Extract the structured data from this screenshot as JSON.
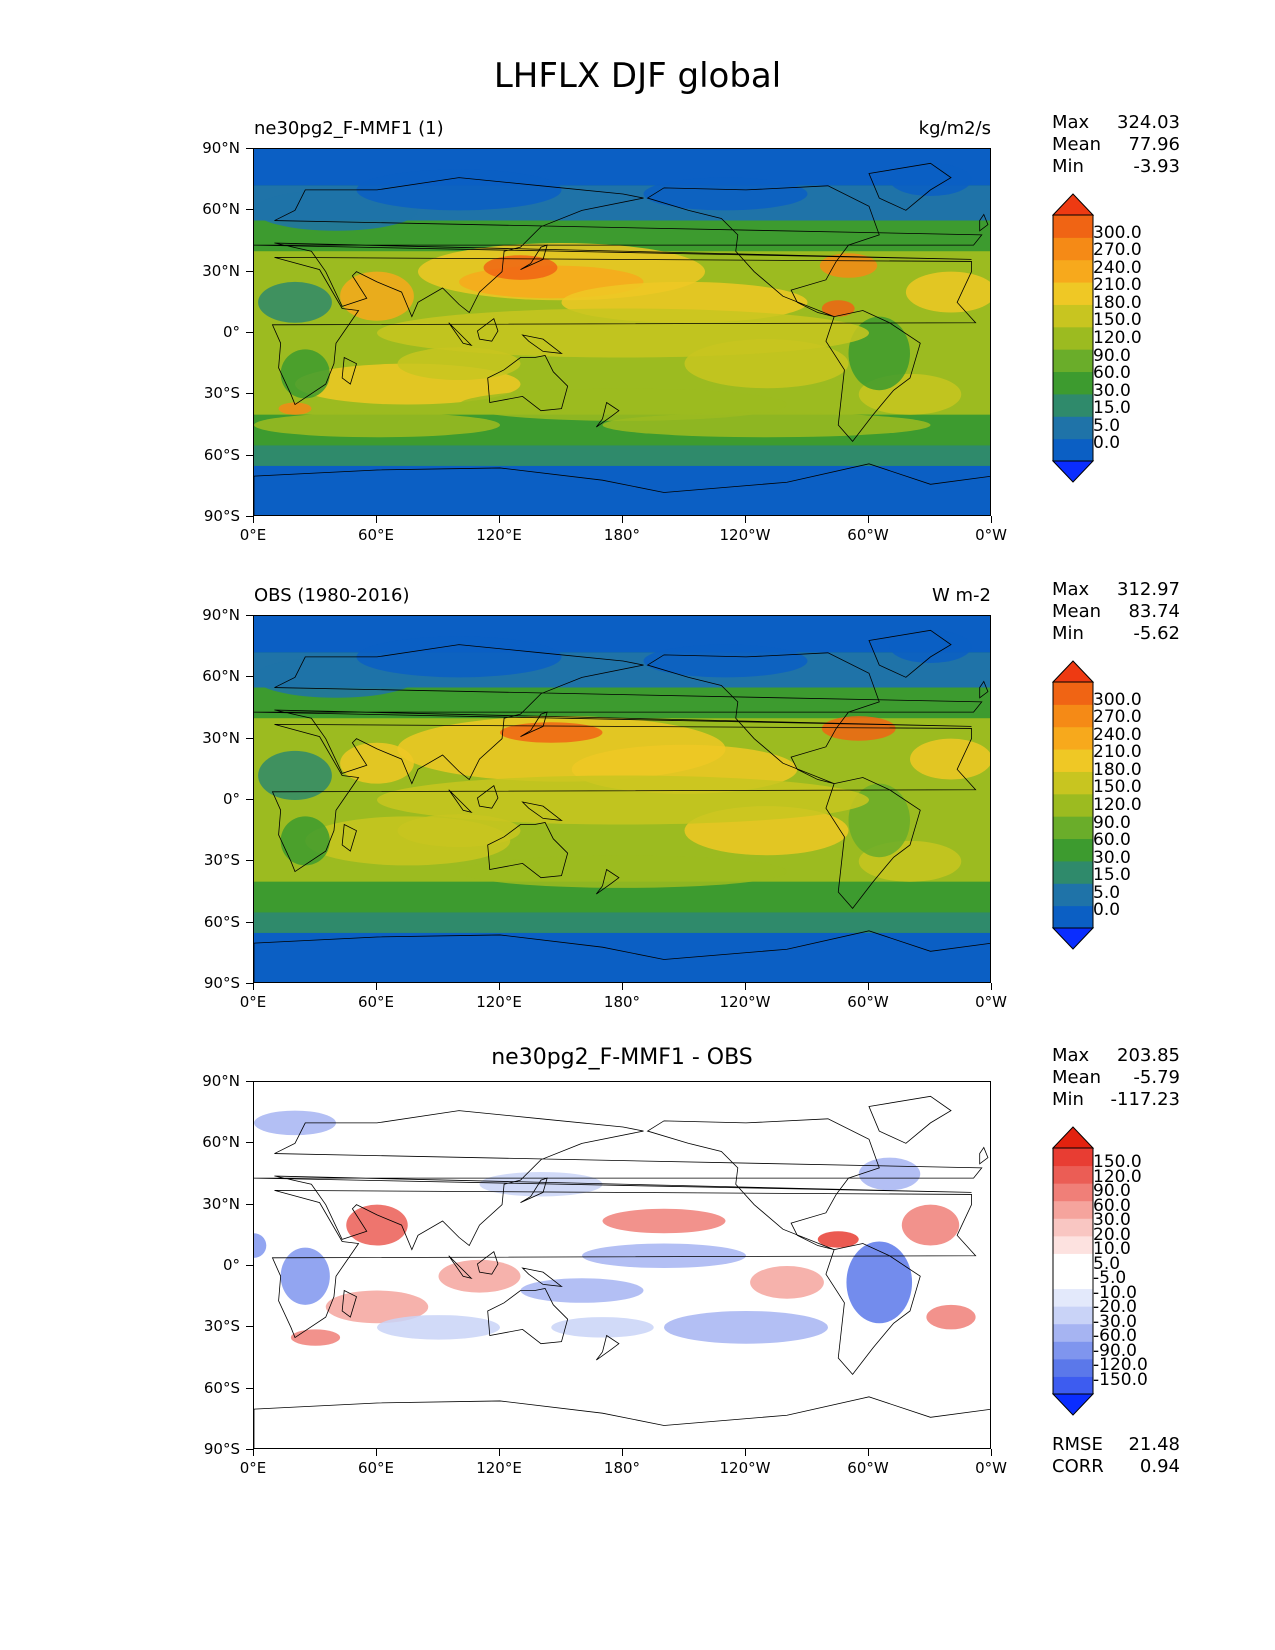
{
  "title": "LHFLX DJF global",
  "y_ticks": [
    "90°N",
    "60°N",
    "30°N",
    "0°",
    "30°S",
    "60°S",
    "90°S"
  ],
  "x_ticks": [
    "0°E",
    "60°E",
    "120°E",
    "180°",
    "120°W",
    "60°W",
    "0°W"
  ],
  "panels": [
    {
      "title_left": "ne30pg2_F-MMF1 (1)",
      "title_right": "kg/m2/s",
      "title_center": "",
      "stats": {
        "max_label": "Max",
        "max": "324.03",
        "mean_label": "Mean",
        "mean": "77.96",
        "min_label": "Min",
        "min": "-3.93"
      },
      "colorbar": [
        "300.0",
        "270.0",
        "240.0",
        "210.0",
        "180.0",
        "150.0",
        "120.0",
        "90.0",
        "60.0",
        "30.0",
        "15.0",
        "5.0",
        "0.0"
      ]
    },
    {
      "title_left": "OBS (1980-2016)",
      "title_right": "W m-2",
      "title_center": "",
      "stats": {
        "max_label": "Max",
        "max": "312.97",
        "mean_label": "Mean",
        "mean": "83.74",
        "min_label": "Min",
        "min": "-5.62"
      },
      "colorbar": [
        "300.0",
        "270.0",
        "240.0",
        "210.0",
        "180.0",
        "150.0",
        "120.0",
        "90.0",
        "60.0",
        "30.0",
        "15.0",
        "5.0",
        "0.0"
      ]
    },
    {
      "title_left": "",
      "title_right": "",
      "title_center": "ne30pg2_F-MMF1 - OBS",
      "stats": {
        "max_label": "Max",
        "max": "203.85",
        "mean_label": "Mean",
        "mean": "-5.79",
        "min_label": "Min",
        "min": "-117.23"
      },
      "colorbar": [
        "150.0",
        "120.0",
        "90.0",
        "60.0",
        "30.0",
        "20.0",
        "10.0",
        "5.0",
        "-5.0",
        "-10.0",
        "-20.0",
        "-30.0",
        "-60.0",
        "-90.0",
        "-120.0",
        "-150.0"
      ],
      "footer": {
        "rmse_label": "RMSE",
        "rmse": "21.48",
        "corr_label": "CORR",
        "corr": "0.94"
      }
    }
  ],
  "colors": {
    "abs_scale": [
      "#0a2dff",
      "#0b5fc4",
      "#1f73a8",
      "#2f8a6b",
      "#3d9b2f",
      "#6aad2a",
      "#9cbb20",
      "#c8c520",
      "#efc825",
      "#f7a91c",
      "#f58a16",
      "#f06414",
      "#ee3a12"
    ],
    "diff_scale": [
      "#0a2dff",
      "#3d5cf0",
      "#5b78ea",
      "#7f95ee",
      "#a6b4f2",
      "#c9d3f7",
      "#e3e9fb",
      "#ffffff",
      "#ffffff",
      "#fde2e0",
      "#f9c6c2",
      "#f5a49d",
      "#f07f78",
      "#eb5d55",
      "#e83d33",
      "#e3220f"
    ]
  },
  "chart_data": [
    {
      "type": "heatmap",
      "title": "ne30pg2_F-MMF1 (1)",
      "units": "kg/m2/s",
      "x_range": [
        "0°E",
        "0°W"
      ],
      "y_range": [
        "90°S",
        "90°N"
      ],
      "stats": {
        "max": 324.03,
        "mean": 77.96,
        "min": -3.93
      },
      "levels": [
        0.0,
        5.0,
        15.0,
        30.0,
        60.0,
        90.0,
        120.0,
        150.0,
        180.0,
        210.0,
        240.0,
        270.0,
        300.0
      ]
    },
    {
      "type": "heatmap",
      "title": "OBS (1980-2016)",
      "units": "W m-2",
      "x_range": [
        "0°E",
        "0°W"
      ],
      "y_range": [
        "90°S",
        "90°N"
      ],
      "stats": {
        "max": 312.97,
        "mean": 83.74,
        "min": -5.62
      },
      "levels": [
        0.0,
        5.0,
        15.0,
        30.0,
        60.0,
        90.0,
        120.0,
        150.0,
        180.0,
        210.0,
        240.0,
        270.0,
        300.0
      ]
    },
    {
      "type": "heatmap",
      "title": "ne30pg2_F-MMF1 - OBS",
      "x_range": [
        "0°E",
        "0°W"
      ],
      "y_range": [
        "90°S",
        "90°N"
      ],
      "stats": {
        "max": 203.85,
        "mean": -5.79,
        "min": -117.23,
        "rmse": 21.48,
        "corr": 0.94
      },
      "levels": [
        -150.0,
        -120.0,
        -90.0,
        -60.0,
        -30.0,
        -20.0,
        -10.0,
        -5.0,
        5.0,
        10.0,
        20.0,
        30.0,
        60.0,
        90.0,
        120.0,
        150.0
      ]
    }
  ]
}
